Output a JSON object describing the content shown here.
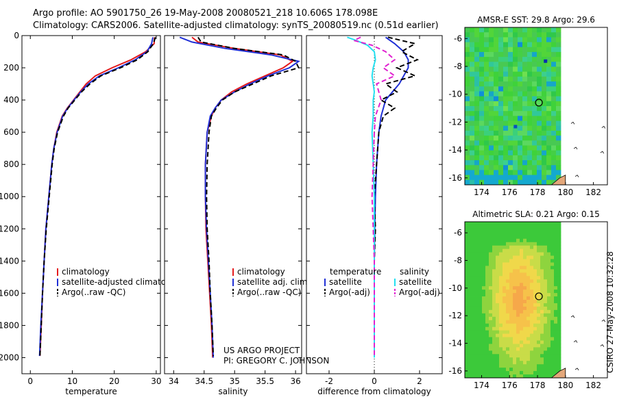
{
  "header": {
    "line1": "Argo profile: AO 5901750_26 19-May-2008 20080521_218 10.606S 178.098E",
    "line2": "Climatology: CARS2006. Satellite-adjusted climatology: synTS_20080519.nc (0.51d earlier)"
  },
  "side_label": "CSIRO 27-May-2008 10:32:28",
  "credits": [
    "US ARGO PROJECT",
    "PI: GREGORY C. JOHNSON"
  ],
  "colors": {
    "climatology": "#e41a1c",
    "satellite": "#1f2fd6",
    "argo": "#000000",
    "sat_salinity": "#22e0f0",
    "argo_salinity": "#e020d0",
    "land": "#e3a77a"
  },
  "chart_data": [
    {
      "type": "line",
      "name": "temperature-profile",
      "xlabel": "temperature",
      "xlim": [
        -2,
        31
      ],
      "ylim": [
        0,
        2100
      ],
      "xticks": [
        0,
        10,
        20,
        30
      ],
      "yticks": [
        0,
        200,
        400,
        600,
        800,
        1000,
        1200,
        1400,
        1600,
        1800,
        2000
      ],
      "legend": [
        "climatology",
        "satellite-adjusted climatology",
        "Argo(..raw -QC)"
      ],
      "series": [
        {
          "name": "climatology",
          "depth": [
            10,
            50,
            100,
            150,
            200,
            250,
            300,
            350,
            400,
            450,
            500,
            600,
            700,
            800,
            1000,
            1200,
            1400,
            1600,
            1800,
            1990
          ],
          "values": [
            29.6,
            29.5,
            27.5,
            24.0,
            19.5,
            15.5,
            13.3,
            11.8,
            10.3,
            8.8,
            7.6,
            6.3,
            5.6,
            5.1,
            4.4,
            3.7,
            3.3,
            2.9,
            2.6,
            2.3
          ]
        },
        {
          "name": "satellite",
          "depth": [
            10,
            50,
            100,
            150,
            200,
            250,
            300,
            350,
            400,
            450,
            500,
            600,
            700,
            800,
            1000,
            1200,
            1400,
            1600,
            1800,
            1990
          ],
          "values": [
            29.2,
            28.9,
            27.8,
            25.0,
            21.0,
            16.5,
            13.8,
            12.0,
            10.4,
            8.9,
            7.7,
            6.4,
            5.6,
            5.1,
            4.4,
            3.7,
            3.3,
            2.9,
            2.5,
            2.2
          ]
        },
        {
          "name": "argo",
          "depth": [
            10,
            50,
            100,
            150,
            200,
            250,
            300,
            350,
            400,
            450,
            500,
            600,
            700,
            800,
            1000,
            1200,
            1400,
            1600,
            1800,
            1990
          ],
          "values": [
            29.8,
            29.3,
            28.0,
            25.5,
            21.5,
            16.8,
            14.2,
            12.2,
            10.6,
            9.0,
            7.9,
            6.5,
            5.7,
            5.2,
            4.5,
            3.8,
            3.3,
            2.9,
            2.6,
            2.3
          ]
        }
      ]
    },
    {
      "type": "line",
      "name": "salinity-profile",
      "xlabel": "salinity",
      "xlim": [
        33.85,
        36.1
      ],
      "ylim": [
        0,
        2100
      ],
      "xticks": [
        34,
        34.5,
        35,
        35.5,
        36
      ],
      "legend": [
        "climatology",
        "satellite adj. clim.",
        "Argo(..raw -QC)"
      ],
      "series": [
        {
          "name": "climatology",
          "depth": [
            10,
            40,
            80,
            120,
            160,
            200,
            250,
            300,
            350,
            400,
            450,
            500,
            600,
            800,
            1000,
            1200,
            1400,
            1600,
            1800,
            2000
          ],
          "values": [
            34.3,
            34.4,
            35.0,
            35.75,
            35.95,
            35.8,
            35.5,
            35.2,
            34.95,
            34.78,
            34.68,
            34.62,
            34.55,
            34.52,
            34.52,
            34.53,
            34.56,
            34.59,
            34.62,
            34.64
          ]
        },
        {
          "name": "satellite",
          "depth": [
            10,
            40,
            80,
            120,
            160,
            200,
            250,
            300,
            350,
            400,
            450,
            500,
            600,
            800,
            1000,
            1200,
            1400,
            1600,
            1800,
            2000
          ],
          "values": [
            34.1,
            34.3,
            34.85,
            35.6,
            36.05,
            35.9,
            35.55,
            35.25,
            35.0,
            34.78,
            34.68,
            34.6,
            34.55,
            34.52,
            34.52,
            34.54,
            34.57,
            34.6,
            34.63,
            34.65
          ]
        },
        {
          "name": "argo",
          "depth": [
            10,
            40,
            80,
            120,
            160,
            200,
            250,
            300,
            350,
            400,
            450,
            500,
            600,
            800,
            1000,
            1200,
            1400,
            1600,
            1800,
            1990
          ],
          "values": [
            34.4,
            34.45,
            35.0,
            35.8,
            36.0,
            36.05,
            35.6,
            35.3,
            35.0,
            34.8,
            34.7,
            34.62,
            34.58,
            34.55,
            34.54,
            34.55,
            34.58,
            34.6,
            34.63,
            34.65
          ]
        }
      ]
    },
    {
      "type": "line",
      "name": "difference-profile",
      "xlabel": "difference from climatology",
      "xlim": [
        -3,
        3
      ],
      "ylim": [
        0,
        2100
      ],
      "xticks": [
        -2,
        0,
        2
      ],
      "legend_headers": [
        "temperature",
        "salinity"
      ],
      "legend": [
        "satellite",
        "Argo(-adj)",
        "satellite",
        "Argo(-adj)"
      ],
      "series": [
        {
          "name": "temperature satellite",
          "depth": [
            10,
            50,
            100,
            150,
            200,
            250,
            300,
            350,
            400,
            450,
            500,
            600,
            800,
            1000,
            1200,
            1400,
            1600,
            1800,
            2000
          ],
          "values": [
            0.5,
            0.9,
            1.3,
            1.5,
            1.5,
            1.3,
            1.1,
            0.8,
            0.5,
            0.4,
            0.3,
            0.2,
            0.1,
            0.05,
            0.02,
            0.0,
            0.0,
            0.0,
            0.0
          ]
        },
        {
          "name": "temperature Argo(-adj)",
          "depth": [
            10,
            50,
            100,
            150,
            200,
            250,
            300,
            350,
            400,
            450,
            500,
            600,
            800,
            1000,
            1200,
            1400,
            1600,
            1800,
            2000
          ],
          "values": [
            0.6,
            1.8,
            1.2,
            1.9,
            1.0,
            1.8,
            0.5,
            1.0,
            0.3,
            0.9,
            0.4,
            0.2,
            0.1,
            0.0,
            0.05,
            0.0,
            0.0,
            0.0,
            0.0
          ]
        },
        {
          "name": "salinity satellite",
          "depth": [
            10,
            30,
            60,
            100,
            150,
            200,
            250,
            300,
            350,
            400,
            500,
            600,
            800,
            1000,
            1200,
            1400,
            1600,
            1800,
            2000
          ],
          "values": [
            -1.2,
            -0.8,
            -0.3,
            0.0,
            0.05,
            -0.05,
            -0.1,
            -0.05,
            0.0,
            -0.05,
            -0.05,
            -0.1,
            -0.05,
            0.0,
            0.0,
            0.0,
            0.0,
            0.0,
            0.0
          ]
        },
        {
          "name": "salinity Argo(-adj)",
          "depth": [
            10,
            30,
            60,
            100,
            150,
            200,
            250,
            300,
            350,
            400,
            500,
            600,
            800,
            1000,
            1200,
            1400,
            1600,
            1800,
            2000
          ],
          "values": [
            -0.6,
            -0.9,
            -0.1,
            0.5,
            0.9,
            0.4,
            0.9,
            0.1,
            0.2,
            0.3,
            0.05,
            0.0,
            -0.05,
            -0.1,
            -0.05,
            0.0,
            0.0,
            0.0,
            0.0
          ]
        }
      ]
    },
    {
      "type": "heatmap",
      "name": "sst-map",
      "title": "AMSR-E SST: 29.8 Argo: 29.6",
      "xticks": [
        174,
        176,
        178,
        180,
        182
      ],
      "yticks": [
        -6,
        -8,
        -10,
        -12,
        -14,
        -16
      ],
      "xlim": [
        172.8,
        183.0
      ],
      "ylim": [
        -16.5,
        -5.2
      ],
      "argo_position": [
        178.1,
        -10.6
      ]
    },
    {
      "type": "heatmap",
      "name": "sla-map",
      "title": "Altimetric SLA: 0.21 Argo: 0.15",
      "xticks": [
        174,
        176,
        178,
        180,
        182
      ],
      "yticks": [
        -6,
        -8,
        -10,
        -12,
        -14,
        -16
      ],
      "xlim": [
        172.8,
        183.0
      ],
      "ylim": [
        -16.5,
        -5.2
      ],
      "argo_position": [
        178.1,
        -10.6
      ]
    }
  ]
}
